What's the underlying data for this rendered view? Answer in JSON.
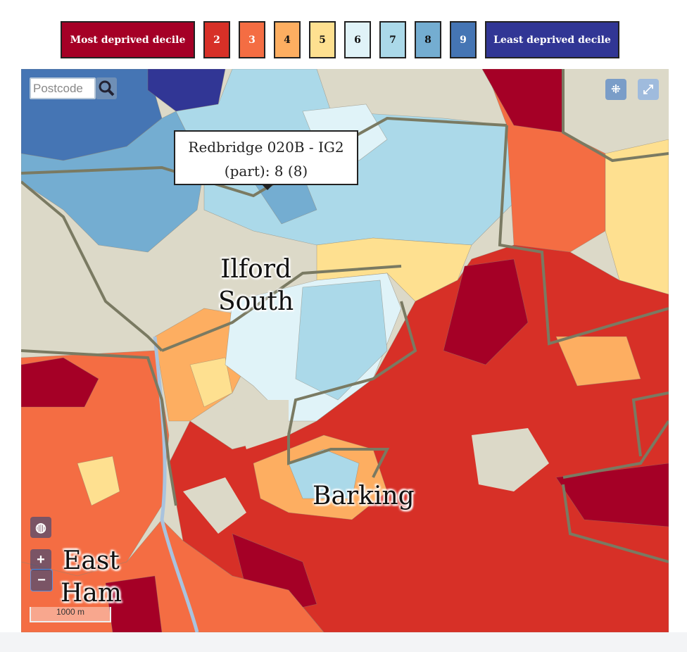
{
  "legend": {
    "items": [
      {
        "label": "Most deprived decile",
        "color": "#a50026"
      },
      {
        "label": "2",
        "color": "#d73027"
      },
      {
        "label": "3",
        "color": "#f46d43"
      },
      {
        "label": "4",
        "color": "#fdae61"
      },
      {
        "label": "5",
        "color": "#fee090"
      },
      {
        "label": "6",
        "color": "#e0f3f8"
      },
      {
        "label": "7",
        "color": "#abd9e9"
      },
      {
        "label": "8",
        "color": "#74add1"
      },
      {
        "label": "9",
        "color": "#4575b4"
      },
      {
        "label": "Least deprived decile",
        "color": "#313695"
      }
    ]
  },
  "search": {
    "placeholder": "Postcode"
  },
  "tooltip": {
    "lines": [
      "Redbridge 020B - IG2",
      "(part): 8 (8)"
    ]
  },
  "places": [
    {
      "lines": [
        "Ilford",
        "South"
      ]
    },
    {
      "lines": [
        "Barking"
      ]
    },
    {
      "lines": [
        "East",
        "Ham"
      ]
    }
  ],
  "scale_bar": "1000 m",
  "zoom": {
    "in": "+",
    "out": "−"
  }
}
